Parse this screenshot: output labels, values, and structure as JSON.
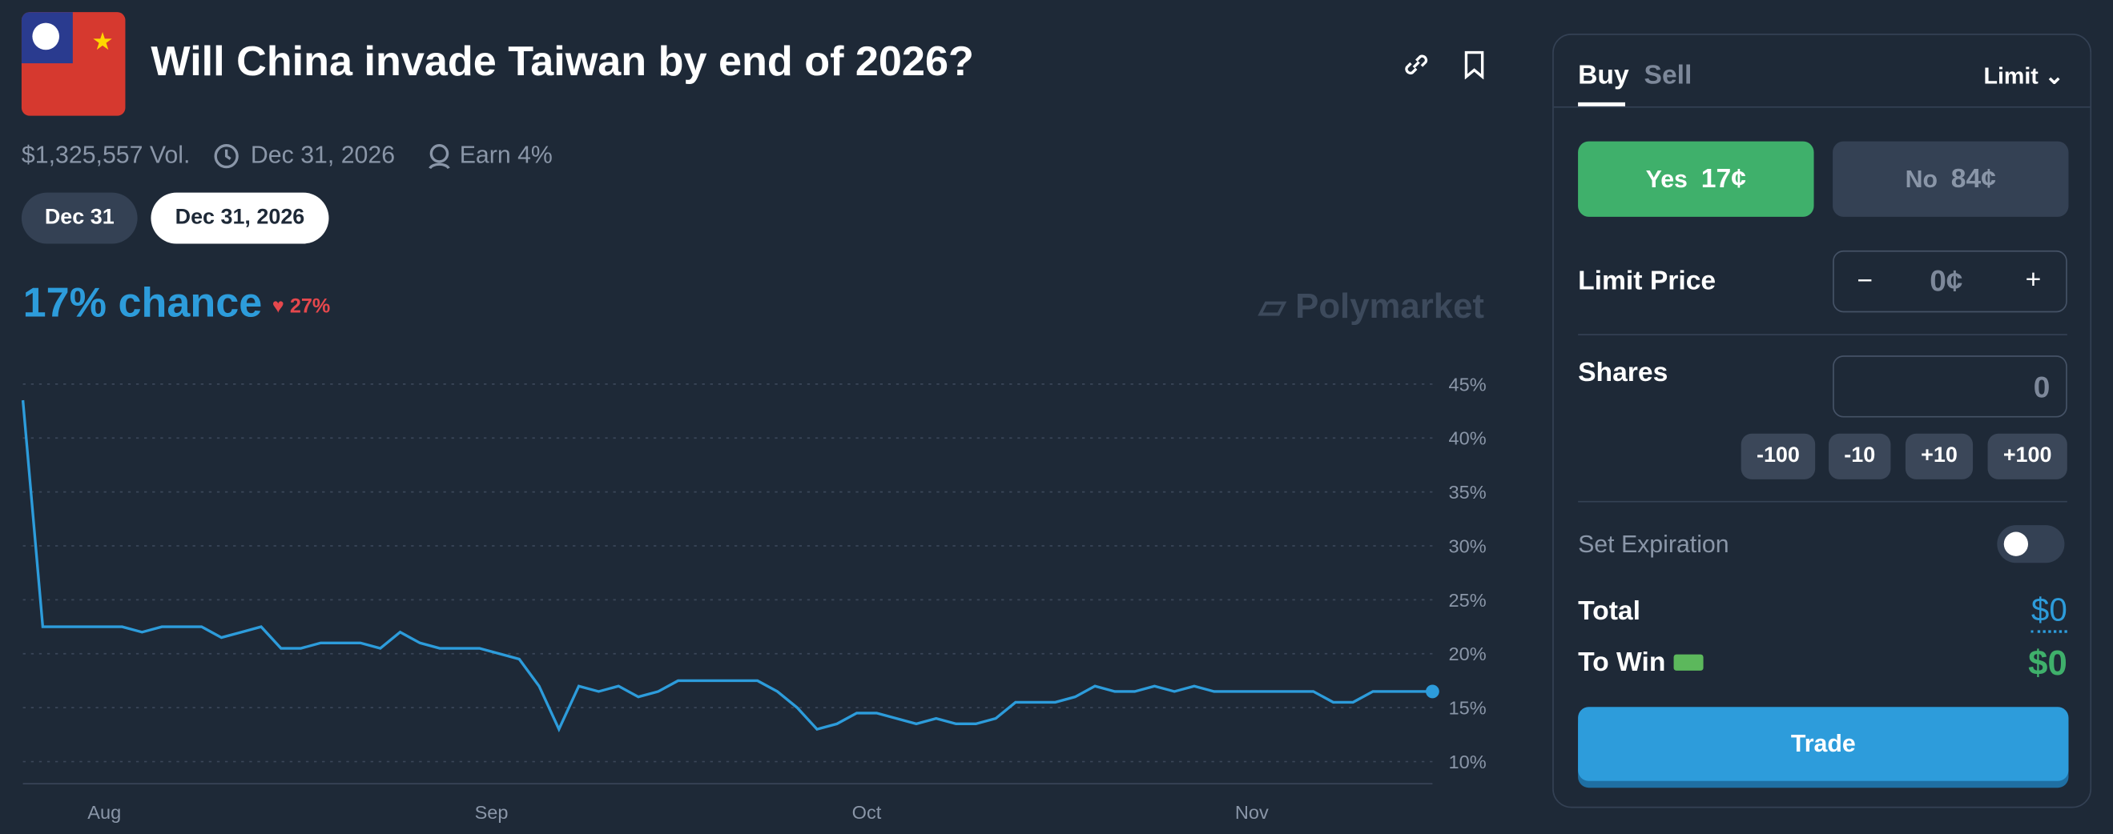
{
  "header": {
    "title": "Will China invade Taiwan by end of 2026?",
    "volume": "$1,325,557 Vol.",
    "end_date": "Dec 31, 2026",
    "earn": "Earn 4%"
  },
  "date_tabs": [
    "Dec 31",
    "Dec 31, 2026"
  ],
  "chance": {
    "label": "17% chance",
    "change": "27%"
  },
  "watermark": "Polymarket",
  "chart_data": {
    "type": "line",
    "color": "#2d9cdb",
    "grid": true,
    "values": [
      43.5,
      22.5,
      22.5,
      22.5,
      22.5,
      22.5,
      22,
      22.5,
      22.5,
      22.5,
      21.5,
      22,
      22.5,
      20.5,
      20.5,
      21,
      21,
      21,
      20.5,
      22,
      21,
      20.5,
      20.5,
      20.5,
      20,
      19.5,
      17,
      13,
      17,
      16.5,
      17,
      16,
      16.5,
      17.5,
      17.5,
      17.5,
      17.5,
      17.5,
      16.5,
      15,
      13,
      13.5,
      14.5,
      14.5,
      14,
      13.5,
      14,
      13.5,
      13.5,
      14,
      15.5,
      15.5,
      15.5,
      16,
      17,
      16.5,
      16.5,
      17,
      16.5,
      17,
      16.5,
      16.5,
      16.5,
      16.5,
      16.5,
      16.5,
      15.5,
      15.5,
      16.5,
      16.5,
      16.5,
      16.5
    ],
    "xlim": [
      0,
      71
    ],
    "xticks": [
      {
        "value": 4.1,
        "label": "Aug"
      },
      {
        "value": 23.6,
        "label": "Sep"
      },
      {
        "value": 42.5,
        "label": "Oct"
      },
      {
        "value": 61.9,
        "label": "Nov"
      }
    ],
    "ylim": [
      8.2,
      46.9
    ],
    "yticks": [
      {
        "value": 10,
        "label": "10%"
      },
      {
        "value": 15,
        "label": "15%"
      },
      {
        "value": 20,
        "label": "20%"
      },
      {
        "value": 25,
        "label": "25%"
      },
      {
        "value": 30,
        "label": "30%"
      },
      {
        "value": 35,
        "label": "35%"
      },
      {
        "value": 40,
        "label": "40%"
      },
      {
        "value": 45,
        "label": "45%"
      }
    ]
  },
  "order_panel": {
    "tabs": [
      "Buy",
      "Sell"
    ],
    "order_type": "Limit",
    "yes": {
      "label": "Yes",
      "price": "17¢"
    },
    "no": {
      "label": "No",
      "price": "84¢"
    },
    "limit_price": {
      "label": "Limit Price",
      "minus": "−",
      "value": "0¢",
      "plus": "+"
    },
    "shares": {
      "label": "Shares",
      "value": "0",
      "steps": [
        "-100",
        "-10",
        "+10",
        "+100"
      ]
    },
    "expiration": "Set Expiration",
    "total": {
      "label": "Total",
      "value": "$0"
    },
    "to_win": {
      "label": "To Win",
      "value": "$0"
    },
    "button": "Trade"
  }
}
